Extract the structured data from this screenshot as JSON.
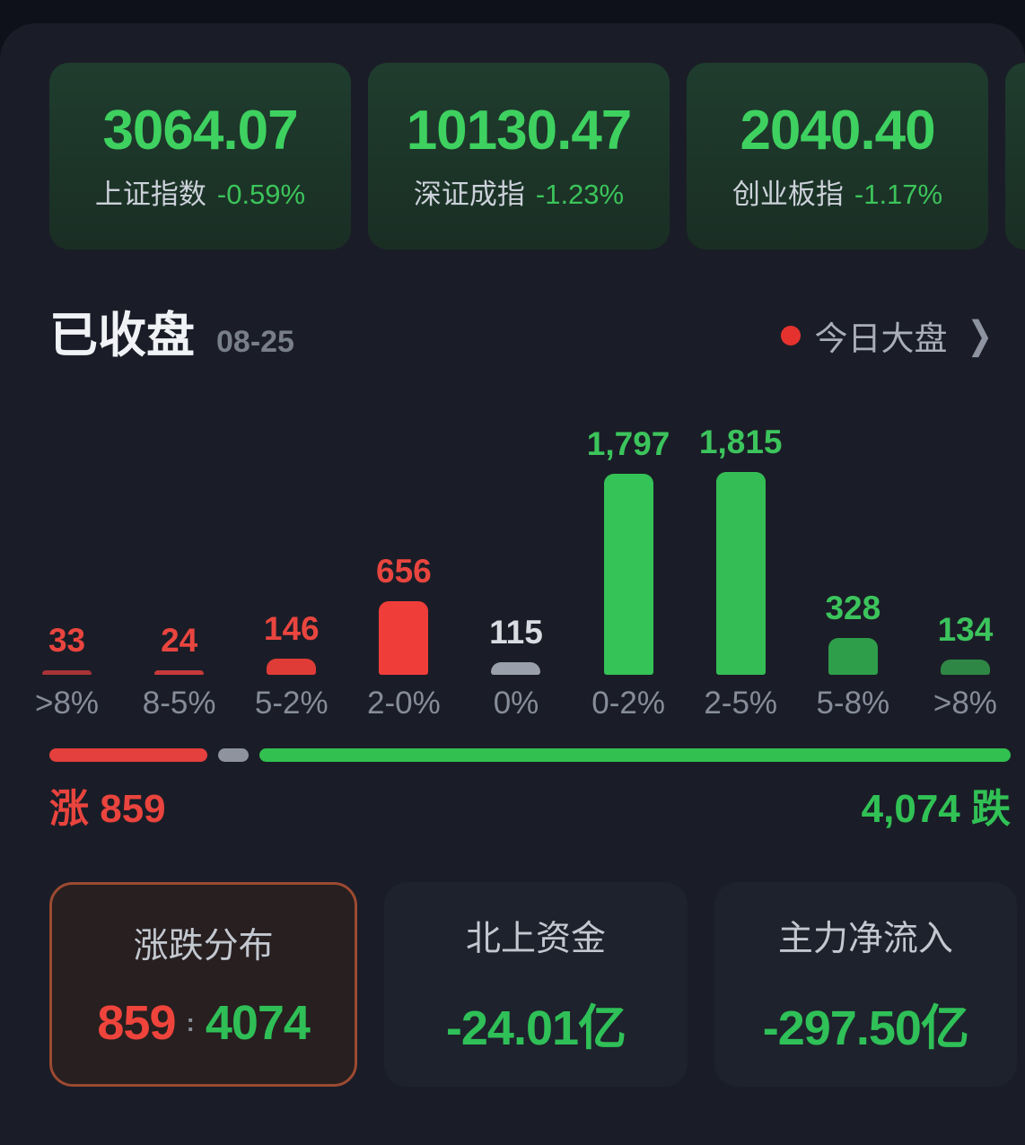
{
  "indices": [
    {
      "value": "3064.07",
      "name": "上证指数",
      "change": "-0.59%"
    },
    {
      "value": "10130.47",
      "name": "深证成指",
      "change": "-1.23%"
    },
    {
      "value": "2040.40",
      "name": "创业板指",
      "change": "-1.17%"
    }
  ],
  "status": {
    "closed_label": "已收盘",
    "date": "08-25",
    "market_link": "今日大盘",
    "chevron": "❯"
  },
  "chart_data": {
    "type": "bar",
    "title": "涨跌分布",
    "categories": [
      ">8%",
      "8-5%",
      "5-2%",
      "2-0%",
      "0%",
      "0-2%",
      "2-5%",
      "5-8%",
      ">8%"
    ],
    "values": [
      33,
      24,
      146,
      656,
      115,
      1797,
      1815,
      328,
      134
    ],
    "display_labels": [
      "33",
      "24",
      "146",
      "656",
      "115",
      "1,797",
      "1,815",
      "328",
      "134"
    ],
    "bar_colors": [
      "#a83337",
      "#c73a39",
      "#df3c38",
      "#ef3e3a",
      "#9aa0ab",
      "#35c257",
      "#35bd55",
      "#2f9e4a",
      "#2e8745"
    ],
    "label_colors": [
      "#e9453f",
      "#e9453f",
      "#e9453f",
      "#e9453f",
      "#d9dce2",
      "#3cc45c",
      "#3cc45c",
      "#3cc45c",
      "#3cc45c"
    ],
    "xlabel": "",
    "ylabel": "",
    "ylim": [
      0,
      1815
    ],
    "grid": false,
    "legend": false
  },
  "ratio": {
    "up": 859,
    "flat": 115,
    "down": 4074,
    "up_label": "涨 859",
    "down_label": "4,074 跌"
  },
  "summary_cards": [
    {
      "title": "涨跌分布",
      "up_value": "859",
      "separator": ":",
      "down_value": "4074"
    },
    {
      "title": "北上资金",
      "value": "-24.01亿"
    },
    {
      "title": "主力净流入",
      "value": "-297.50亿"
    }
  ],
  "colors": {
    "up_red": "#e9443e",
    "down_green": "#31c155",
    "flat_gray": "#9aa0ab",
    "index_green": "#3ed160",
    "selected_card_border": "#9c4a31",
    "status_dot_red": "#e5322e"
  }
}
